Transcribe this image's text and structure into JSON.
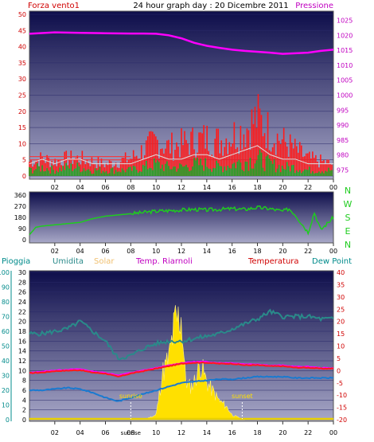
{
  "header": {
    "left_label": "Forza vento1",
    "title": "24 hour graph day : 20 Dicembre 2011",
    "right_label": "Pressione"
  },
  "colors": {
    "panel_top": "#0d0d4a",
    "panel_bottom": "#a8a8c8",
    "wind_max": "#ff1a1a",
    "wind_avg": "#20a020",
    "wind_mean_line": "#e0e0e0",
    "pressure": "#ff00ff",
    "direction": "#1fcc1f",
    "rain": "#008b8b",
    "humidity": "#2a8a8a",
    "solar_label": "#f0c070",
    "solar": "#ffe000",
    "riarnoli": "#ff00ff",
    "temperature": "#ff1a1a",
    "dewpoint": "#1a7ad0",
    "axis_red": "#d00000",
    "axis_magenta": "#c000c0"
  },
  "x_tick_labels": [
    "02",
    "04",
    "06",
    "08",
    "10",
    "12",
    "14",
    "16",
    "18",
    "20",
    "22",
    "00"
  ],
  "chart_data": [
    {
      "type": "line",
      "title": "Forza vento1 / Pressione",
      "x_range_hours": [
        0,
        24
      ],
      "y_left": {
        "label": "Forza vento1",
        "ticks": [
          0,
          5,
          10,
          15,
          20,
          25,
          30,
          35,
          40,
          45,
          50
        ],
        "ylim": [
          0,
          50
        ]
      },
      "y_right": {
        "label": "Pressione",
        "ticks": [
          975,
          980,
          985,
          990,
          995,
          1000,
          1005,
          1010,
          1015,
          1020,
          1025
        ],
        "ylim": [
          973,
          1027
        ]
      },
      "series": [
        {
          "name": "Pressione",
          "axis": "right",
          "x": [
            0,
            2,
            4,
            6,
            8,
            9,
            10,
            11,
            12,
            13,
            14,
            15,
            16,
            17,
            18,
            19,
            20,
            21,
            22,
            23,
            24
          ],
          "values": [
            1020.5,
            1021,
            1020.8,
            1020.7,
            1020.6,
            1020.6,
            1020.5,
            1020,
            1019,
            1017.5,
            1016.5,
            1015.8,
            1015.2,
            1014.8,
            1014.5,
            1014.2,
            1013.8,
            1014,
            1014.2,
            1014.8,
            1015.2
          ]
        },
        {
          "name": "",
          "axis": "left",
          "role": "gust",
          "x": [
            0,
            1,
            2,
            3,
            4,
            5,
            6,
            7,
            8,
            9,
            10,
            11,
            12,
            13,
            14,
            15,
            16,
            17,
            18,
            19,
            20,
            21,
            22,
            23,
            24
          ],
          "values": [
            5,
            6,
            5,
            6,
            6,
            5,
            4,
            5,
            6,
            9,
            12,
            10,
            11,
            12,
            13,
            12,
            14,
            16,
            20,
            15,
            12,
            9,
            6,
            5,
            4
          ]
        },
        {
          "name": "",
          "axis": "left",
          "role": "average",
          "x": [
            0,
            1,
            2,
            3,
            4,
            5,
            6,
            7,
            8,
            9,
            10,
            11,
            12,
            13,
            14,
            15,
            16,
            17,
            18,
            19,
            20,
            21,
            22,
            23,
            24
          ],
          "values": [
            2,
            3,
            2,
            3,
            3,
            2,
            2,
            2,
            2,
            3,
            4,
            3,
            3,
            4,
            4,
            3,
            4,
            5,
            6,
            4,
            3,
            3,
            2,
            2,
            2
          ]
        }
      ],
      "reference_lines": [
        5,
        6
      ]
    },
    {
      "type": "line",
      "title": "",
      "y_left": {
        "ticks": [
          0,
          90,
          180,
          270,
          360
        ],
        "ylim": [
          0,
          360
        ]
      },
      "y_right_labels": [
        "N",
        "W",
        "S",
        "E",
        "N"
      ],
      "series": [
        {
          "name": "",
          "x": [
            0,
            0.5,
            1,
            2,
            3,
            4,
            5,
            6,
            7,
            8,
            9,
            10,
            11,
            12,
            13,
            14,
            15,
            16,
            17,
            18,
            19,
            20,
            20.5,
            21,
            22,
            22.5,
            23,
            23.5,
            24
          ],
          "values": [
            40,
            100,
            110,
            120,
            130,
            140,
            170,
            190,
            200,
            210,
            220,
            230,
            235,
            240,
            245,
            240,
            245,
            250,
            245,
            260,
            250,
            230,
            250,
            200,
            60,
            220,
            80,
            130,
            180
          ]
        }
      ]
    },
    {
      "type": "line",
      "title": "",
      "axes_left": [
        {
          "label": "Pioggia",
          "ticks": [
            0,
            10,
            20,
            30,
            40,
            50,
            60,
            70,
            80,
            90,
            100
          ],
          "ylim": [
            0,
            100
          ]
        },
        {
          "label": "Umidita",
          "ticks": [
            0,
            2,
            4,
            6,
            8,
            10,
            12,
            14,
            16,
            18,
            20,
            22,
            24,
            26,
            28,
            30
          ],
          "ylim": [
            0,
            30
          ]
        }
      ],
      "axes_right": [
        {
          "label": "Temperatura",
          "ticks": [
            -20,
            -15,
            -10,
            -5,
            0,
            5,
            10,
            15,
            20,
            25,
            30,
            35,
            40
          ],
          "ylim": [
            -20,
            40
          ]
        }
      ],
      "legend": [
        "Pioggia",
        "Umidita",
        "Solar",
        "Temp. Riarnoli",
        "Temperatura",
        "Dew Point"
      ],
      "annotations": [
        "sunrise",
        "sunset"
      ],
      "sunrise_hour": 8.0,
      "sunset_hour": 16.8,
      "series": [
        {
          "name": "Umidita",
          "unit_axis": "Temperatura",
          "x": [
            0,
            1,
            2,
            3,
            4,
            5,
            6,
            7,
            8,
            9,
            10,
            11,
            12,
            13,
            14,
            15,
            16,
            17,
            18,
            19,
            20,
            21,
            22,
            23,
            24
          ],
          "values": [
            15,
            15,
            16,
            17,
            20,
            16,
            12,
            5,
            6,
            9,
            11,
            12,
            12,
            13,
            14,
            15,
            17,
            19,
            21,
            24,
            22,
            22,
            22,
            21,
            21
          ]
        },
        {
          "name": "Temp. Riarnoli",
          "unit_axis": "Temperatura",
          "x": [
            0,
            1,
            2,
            3,
            4,
            5,
            6,
            7,
            8,
            9,
            10,
            11,
            12,
            13,
            14,
            15,
            16,
            17,
            18,
            19,
            20,
            21,
            22,
            23,
            24
          ],
          "values": [
            -1,
            -0.5,
            0,
            0.3,
            0.5,
            -0.5,
            -1,
            -2,
            -1,
            0,
            1,
            2,
            3,
            3.5,
            3.5,
            3,
            3,
            2.5,
            2.5,
            2,
            2,
            1.5,
            1.5,
            1,
            1
          ]
        },
        {
          "name": "Temperatura",
          "unit_axis": "Temperatura",
          "x": [
            0,
            1,
            2,
            3,
            4,
            5,
            6,
            7,
            8,
            9,
            10,
            11,
            12,
            13,
            14,
            15,
            16,
            17,
            18,
            19,
            20,
            21,
            22,
            23,
            24
          ],
          "values": [
            -1,
            -0.8,
            -0.2,
            0,
            0.2,
            -0.8,
            -1.2,
            -2.5,
            -1.2,
            -0.2,
            0.8,
            1.8,
            2.8,
            3.2,
            3.2,
            2.8,
            2.8,
            2.2,
            2.2,
            1.8,
            1.8,
            1.2,
            1.2,
            0.8,
            0.8
          ]
        },
        {
          "name": "Dew Point",
          "unit_axis": "Temperatura",
          "x": [
            0,
            1,
            2,
            3,
            4,
            5,
            6,
            7,
            8,
            9,
            10,
            11,
            12,
            13,
            14,
            15,
            16,
            17,
            18,
            19,
            20,
            21,
            22,
            23,
            24
          ],
          "values": [
            -8,
            -8,
            -7.5,
            -7,
            -7.5,
            -9,
            -11,
            -12.5,
            -11,
            -9.5,
            -8,
            -6.5,
            -5,
            -4.5,
            -4,
            -3.5,
            -3.5,
            -3,
            -2.5,
            -2.5,
            -2.5,
            -3,
            -3,
            -3,
            -3
          ]
        },
        {
          "name": "Solar",
          "unit_axis": "Umidita",
          "x": [
            8,
            9,
            10,
            10.5,
            11,
            11.5,
            12,
            12.3,
            12.6,
            13,
            13.5,
            14,
            14.5,
            15,
            15.5,
            16,
            16.5,
            17
          ],
          "values": [
            0,
            0,
            1,
            10,
            13,
            21,
            22,
            9,
            7,
            8,
            12,
            8,
            6,
            4,
            3,
            1,
            0.5,
            0
          ]
        },
        {
          "name": "Pioggia",
          "unit_axis": "Pioggia",
          "x": [
            0,
            24
          ],
          "values": [
            0,
            0
          ]
        }
      ]
    }
  ]
}
